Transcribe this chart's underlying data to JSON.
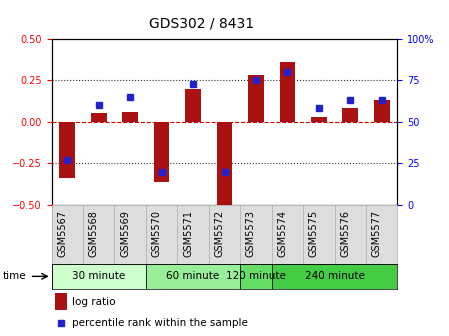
{
  "title": "GDS302 / 8431",
  "samples": [
    "GSM5567",
    "GSM5568",
    "GSM5569",
    "GSM5570",
    "GSM5571",
    "GSM5572",
    "GSM5573",
    "GSM5574",
    "GSM5575",
    "GSM5576",
    "GSM5577"
  ],
  "log_ratios": [
    -0.34,
    0.05,
    0.06,
    -0.36,
    0.2,
    -0.5,
    0.28,
    0.36,
    0.03,
    0.08,
    0.13
  ],
  "percentile_ranks": [
    27,
    60,
    65,
    20,
    73,
    20,
    75,
    80,
    58,
    63,
    63
  ],
  "groups": [
    {
      "label": "30 minute",
      "indices": [
        0,
        1,
        2
      ],
      "color": "#ccffcc"
    },
    {
      "label": "60 minute",
      "indices": [
        3,
        4,
        5
      ],
      "color": "#99ee99"
    },
    {
      "label": "120 minute",
      "indices": [
        6
      ],
      "color": "#66dd66"
    },
    {
      "label": "240 minute",
      "indices": [
        7,
        8,
        9,
        10
      ],
      "color": "#44cc44"
    }
  ],
  "bar_color": "#aa1111",
  "dot_color": "#2222cc",
  "ylim_left": [
    -0.5,
    0.5
  ],
  "ylim_right": [
    0,
    100
  ],
  "yticks_left": [
    -0.5,
    -0.25,
    0,
    0.25,
    0.5
  ],
  "yticks_right": [
    0,
    25,
    50,
    75,
    100
  ],
  "hline_zero_color": "#cc0000",
  "hline_dotted_color": "#333333",
  "bg_color": "#ffffff",
  "tick_area_color": "#dddddd",
  "title_fontsize": 10,
  "tick_fontsize": 7,
  "label_fontsize": 7.5,
  "legend_log_ratio": "log ratio",
  "legend_percentile": "percentile rank within the sample",
  "time_label": "time"
}
